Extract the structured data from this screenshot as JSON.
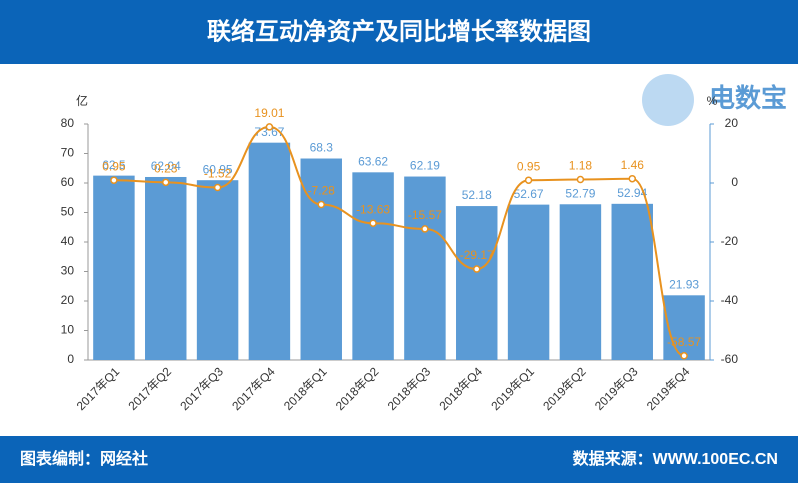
{
  "chart_data": {
    "type": "bar-line",
    "title": "联络互动净资产及同比增长率数据图",
    "logo_text": "电数宝",
    "footer_left": "图表编制：网经社",
    "footer_right": "数据来源：WWW.100EC.CN",
    "y_label": "亿",
    "y2_label": "%",
    "categories": [
      "2017年Q1",
      "2017年Q2",
      "2017年Q3",
      "2017年Q4",
      "2018年Q1",
      "2018年Q2",
      "2018年Q3",
      "2018年Q4",
      "2019年Q1",
      "2019年Q2",
      "2019年Q3",
      "2019年Q4"
    ],
    "series": [
      {
        "type": "bar",
        "color": "#5b9bd5",
        "values": [
          62.5,
          62.04,
          60.95,
          73.67,
          68.3,
          63.62,
          62.19,
          52.18,
          52.67,
          52.79,
          52.94,
          21.93
        ]
      },
      {
        "type": "line",
        "axis": "y2",
        "color": "#e8921f",
        "values": [
          0.95,
          0.23,
          -1.52,
          19.01,
          -7.28,
          -13.63,
          -15.57,
          -29.17,
          0.95,
          1.18,
          1.46,
          -58.57
        ]
      }
    ],
    "ylim": [
      0,
      80
    ],
    "yticks": [
      0,
      10,
      20,
      30,
      40,
      50,
      60,
      70,
      80
    ],
    "y2lim": [
      -60,
      20
    ],
    "y2ticks": [
      -60,
      -40,
      -20,
      0,
      20
    ]
  }
}
